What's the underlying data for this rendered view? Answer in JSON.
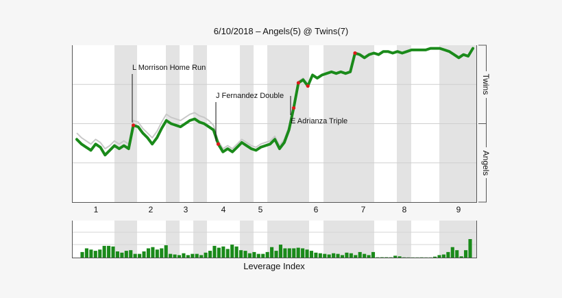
{
  "chart_data": [
    {
      "type": "line",
      "title": "6/10/2018 – Angels(5) @ Twins(7)",
      "y_top_label": "Twins",
      "y_bottom_label": "Angels",
      "ylim": [
        0,
        100
      ],
      "x_ticks": [
        "1",
        "2",
        "3",
        "4",
        "5",
        "6",
        "7",
        "8",
        "9"
      ],
      "series": [
        {
          "color": "#1a8a1a",
          "values": [
            40,
            37,
            35,
            33,
            37,
            35,
            30,
            33,
            36,
            34,
            36,
            34,
            49,
            48,
            44,
            41,
            37,
            41,
            47,
            52,
            50,
            49,
            48,
            50,
            52,
            53,
            51,
            50,
            48,
            46,
            37,
            32,
            34,
            32,
            35,
            38,
            36,
            34,
            33,
            35,
            36,
            37,
            40,
            34,
            38,
            46,
            60,
            76,
            78,
            74,
            81,
            79,
            81,
            82,
            83,
            82,
            83,
            82,
            83,
            95,
            94,
            92,
            94,
            95,
            94,
            96,
            96,
            95,
            96,
            95,
            96,
            97,
            97,
            97,
            97,
            98,
            98,
            98,
            97,
            96,
            94,
            92,
            94,
            93,
            98
          ]
        },
        {
          "color": "#c8c8c8",
          "values": [
            44,
            41,
            39,
            37,
            40,
            38,
            34,
            36,
            39,
            37,
            39,
            37,
            52,
            51,
            47,
            44,
            41,
            45,
            51,
            56,
            54,
            53,
            52,
            54,
            56,
            57,
            55,
            54,
            52,
            49,
            39,
            34,
            36,
            34,
            37,
            40,
            38,
            36,
            35,
            37,
            38,
            39,
            42,
            36,
            40,
            48,
            62,
            77,
            79,
            75
          ]
        }
      ],
      "annotations": [
        {
          "text": "L Morrison Home Run",
          "index": 12
        },
        {
          "text": "J Fernandez Double",
          "index": 30
        },
        {
          "text": "E Adrianza Triple",
          "index": 46
        }
      ],
      "markers": [
        12,
        30,
        46,
        47,
        49,
        59
      ],
      "shaded_innings": [
        2,
        4,
        6,
        8,
        10,
        12,
        14,
        16
      ]
    },
    {
      "type": "bar",
      "title": "Leverage Index",
      "values": [
        0.9,
        1.5,
        1.3,
        1.1,
        1.3,
        1.9,
        1.9,
        1.8,
        1.0,
        0.8,
        1.1,
        1.2,
        0.6,
        0.6,
        1.0,
        1.5,
        1.7,
        1.3,
        1.5,
        2.0,
        0.6,
        0.5,
        0.4,
        0.7,
        0.4,
        0.6,
        0.6,
        0.4,
        0.8,
        1.1,
        1.9,
        1.6,
        1.8,
        1.4,
        2.1,
        1.8,
        1.2,
        1.1,
        0.7,
        0.9,
        0.6,
        0.6,
        0.9,
        1.7,
        1.1,
        2.1,
        1.5,
        1.5,
        1.5,
        1.6,
        1.5,
        1.3,
        1.1,
        0.8,
        0.7,
        0.6,
        0.5,
        0.7,
        0.6,
        0.4,
        0.8,
        0.7,
        0.4,
        0.9,
        0.6,
        0.4,
        0.9,
        0.05,
        0.06,
        0.06,
        0.05,
        0.3,
        0.2,
        0.04,
        0.03,
        0.03,
        0.03,
        0.04,
        0.03,
        0.03,
        0.15,
        0.4,
        0.5,
        0.9,
        1.7,
        1.2,
        0.2,
        1.2,
        3.0
      ]
    }
  ]
}
